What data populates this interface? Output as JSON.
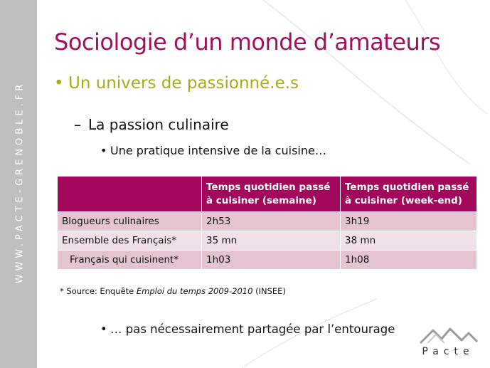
{
  "sidebar": {
    "text": "WWW.PACTE-GRENOBLE.FR"
  },
  "slide": {
    "title": "Sociologie d’un monde d’amateurs",
    "bullet1": "Un univers de passionné.e.s",
    "bullet2": "La passion culinaire",
    "bullet3": "Une pratique intensive de la cuisine…",
    "bullet4": "… pas nécessairement partagée par l’entourage"
  },
  "table": {
    "headers": [
      "",
      "Temps quotidien passé à cuisiner (semaine)",
      "Temps quotidien passé à cuisiner (week-end)"
    ],
    "rows": [
      [
        "Blogueurs culinaires",
        "2h53",
        "3h19"
      ],
      [
        "Ensemble des Français*",
        "35 mn",
        "38 mn"
      ],
      [
        "Français qui cuisinent*",
        "1h03",
        "1h08"
      ]
    ]
  },
  "source": {
    "prefix": "* Source: Enquête ",
    "italic": "Emploi du temps 2009-2010",
    "suffix": " (INSEE)"
  },
  "logo": {
    "text": "Pacte"
  },
  "colors": {
    "title": "#a0105f",
    "accent_green": "#a9a91b",
    "table_header": "#a3085c",
    "row_dark": "#e4c3d2",
    "row_light": "#f0e0e8",
    "sidebar": "#bfbfbf"
  }
}
